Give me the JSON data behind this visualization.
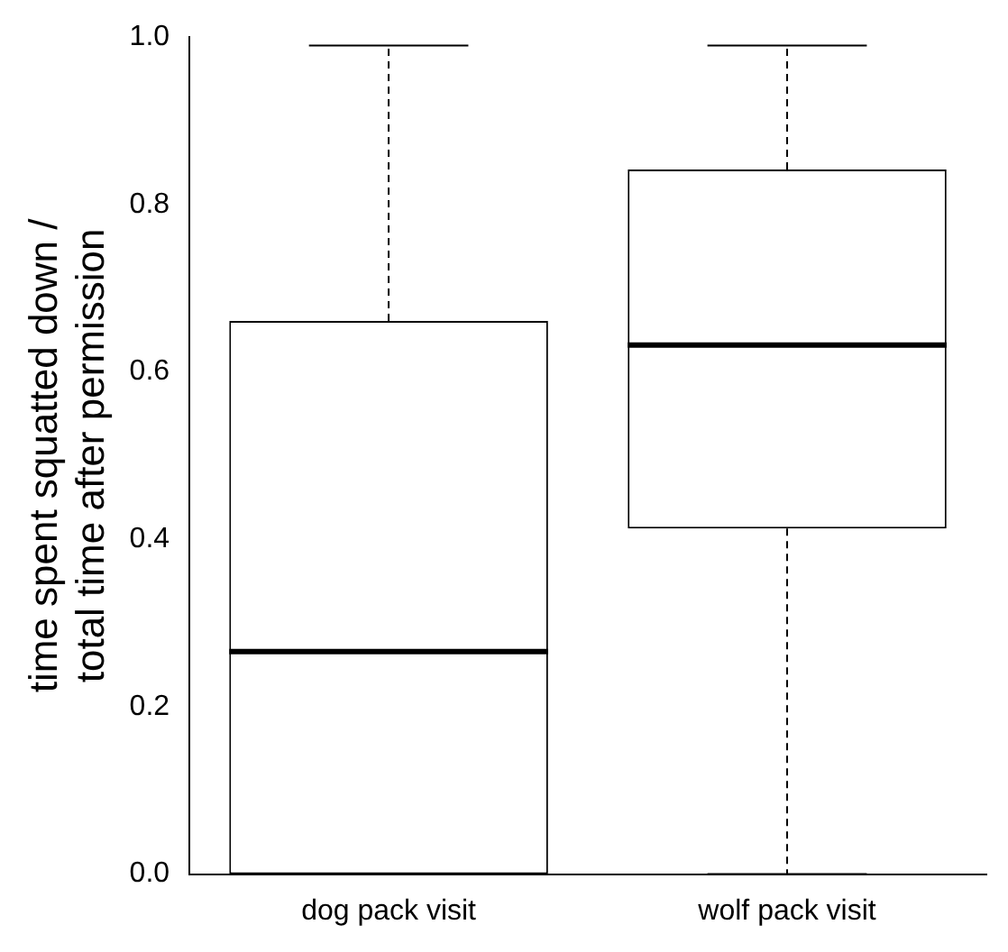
{
  "chart_data": {
    "type": "box",
    "ylabel": "time spent squatted down /\ntotal time after permission",
    "categories": [
      "dog pack visit",
      "wolf pack visit"
    ],
    "boxes": [
      {
        "low": 0,
        "q1": 0,
        "median": 0.266,
        "q3": 0.661,
        "high": 0.99
      },
      {
        "low": 0,
        "q1": 0.413,
        "median": 0.632,
        "q3": 0.842,
        "high": 0.99
      }
    ],
    "ylim": [
      0,
      1
    ],
    "yticks": [
      {
        "value": 0,
        "label": "0.0"
      },
      {
        "value": 0.2,
        "label": "0.2"
      },
      {
        "value": 0.4,
        "label": "0.4"
      },
      {
        "value": 0.6,
        "label": "0.6"
      },
      {
        "value": 0.8,
        "label": "0.8"
      },
      {
        "value": 1,
        "label": "1.0"
      }
    ],
    "grid": false
  }
}
